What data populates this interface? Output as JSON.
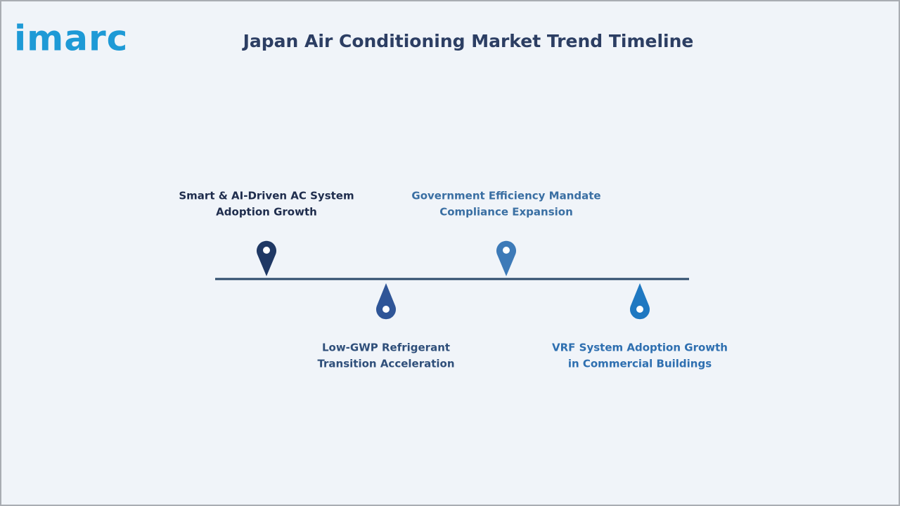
{
  "logo": "imarc",
  "title": "Japan Air Conditioning Market Trend Timeline",
  "milestones": [
    {
      "lines": [
        "Smart & AI-Driven AC System",
        "Adoption Growth"
      ]
    },
    {
      "lines": [
        "Low-GWP Refrigerant",
        "Transition Acceleration"
      ]
    },
    {
      "lines": [
        "Government Efficiency Mandate",
        "Compliance Expansion"
      ]
    },
    {
      "lines": [
        "VRF System Adoption Growth",
        "in Commercial Buildings"
      ]
    }
  ]
}
